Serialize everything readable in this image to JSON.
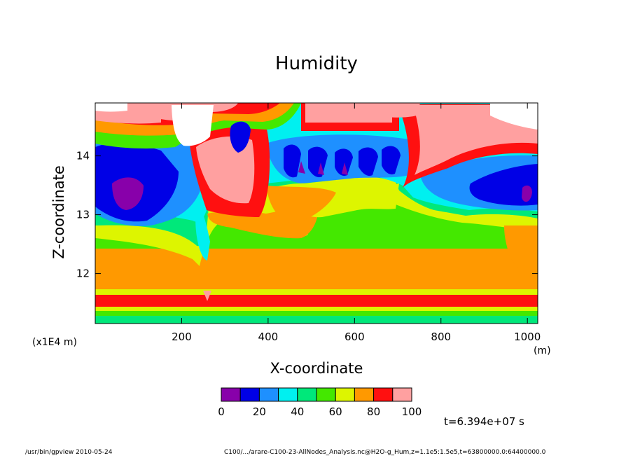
{
  "chart_data": {
    "type": "heatmap",
    "title": "Humidity",
    "xlabel": "X-coordinate",
    "ylabel": "Z-coordinate",
    "x_unit": "(m)",
    "y_unit": "(x1E4 m)",
    "xlim": [
      0,
      1024
    ],
    "ylim": [
      11.15,
      14.9
    ],
    "x_ticks": [
      "200",
      "400",
      "600",
      "800",
      "1000"
    ],
    "y_ticks": [
      "12",
      "13",
      "14"
    ],
    "colorbar": {
      "levels": [
        0,
        10,
        20,
        30,
        40,
        50,
        60,
        70,
        80,
        90,
        100
      ],
      "labels": [
        "0",
        "20",
        "40",
        "60",
        "80",
        "100"
      ],
      "colors": [
        "#8800aa",
        "#0000e6",
        "#1e90ff",
        "#00f0f0",
        "#00e87a",
        "#44e800",
        "#ddf500",
        "#ff9900",
        "#ff1010",
        "#ffa0a0"
      ]
    },
    "time_label": "t=6.394e+07 s"
  },
  "footer": {
    "left": "/usr/bin/gpview   2010-05-24",
    "right": "C100/.../arare-C100-23-AllNodes_Analysis.nc@H2O-g_Hum,z=1.1e5:1.5e5,t=63800000.0:64400000.0"
  }
}
